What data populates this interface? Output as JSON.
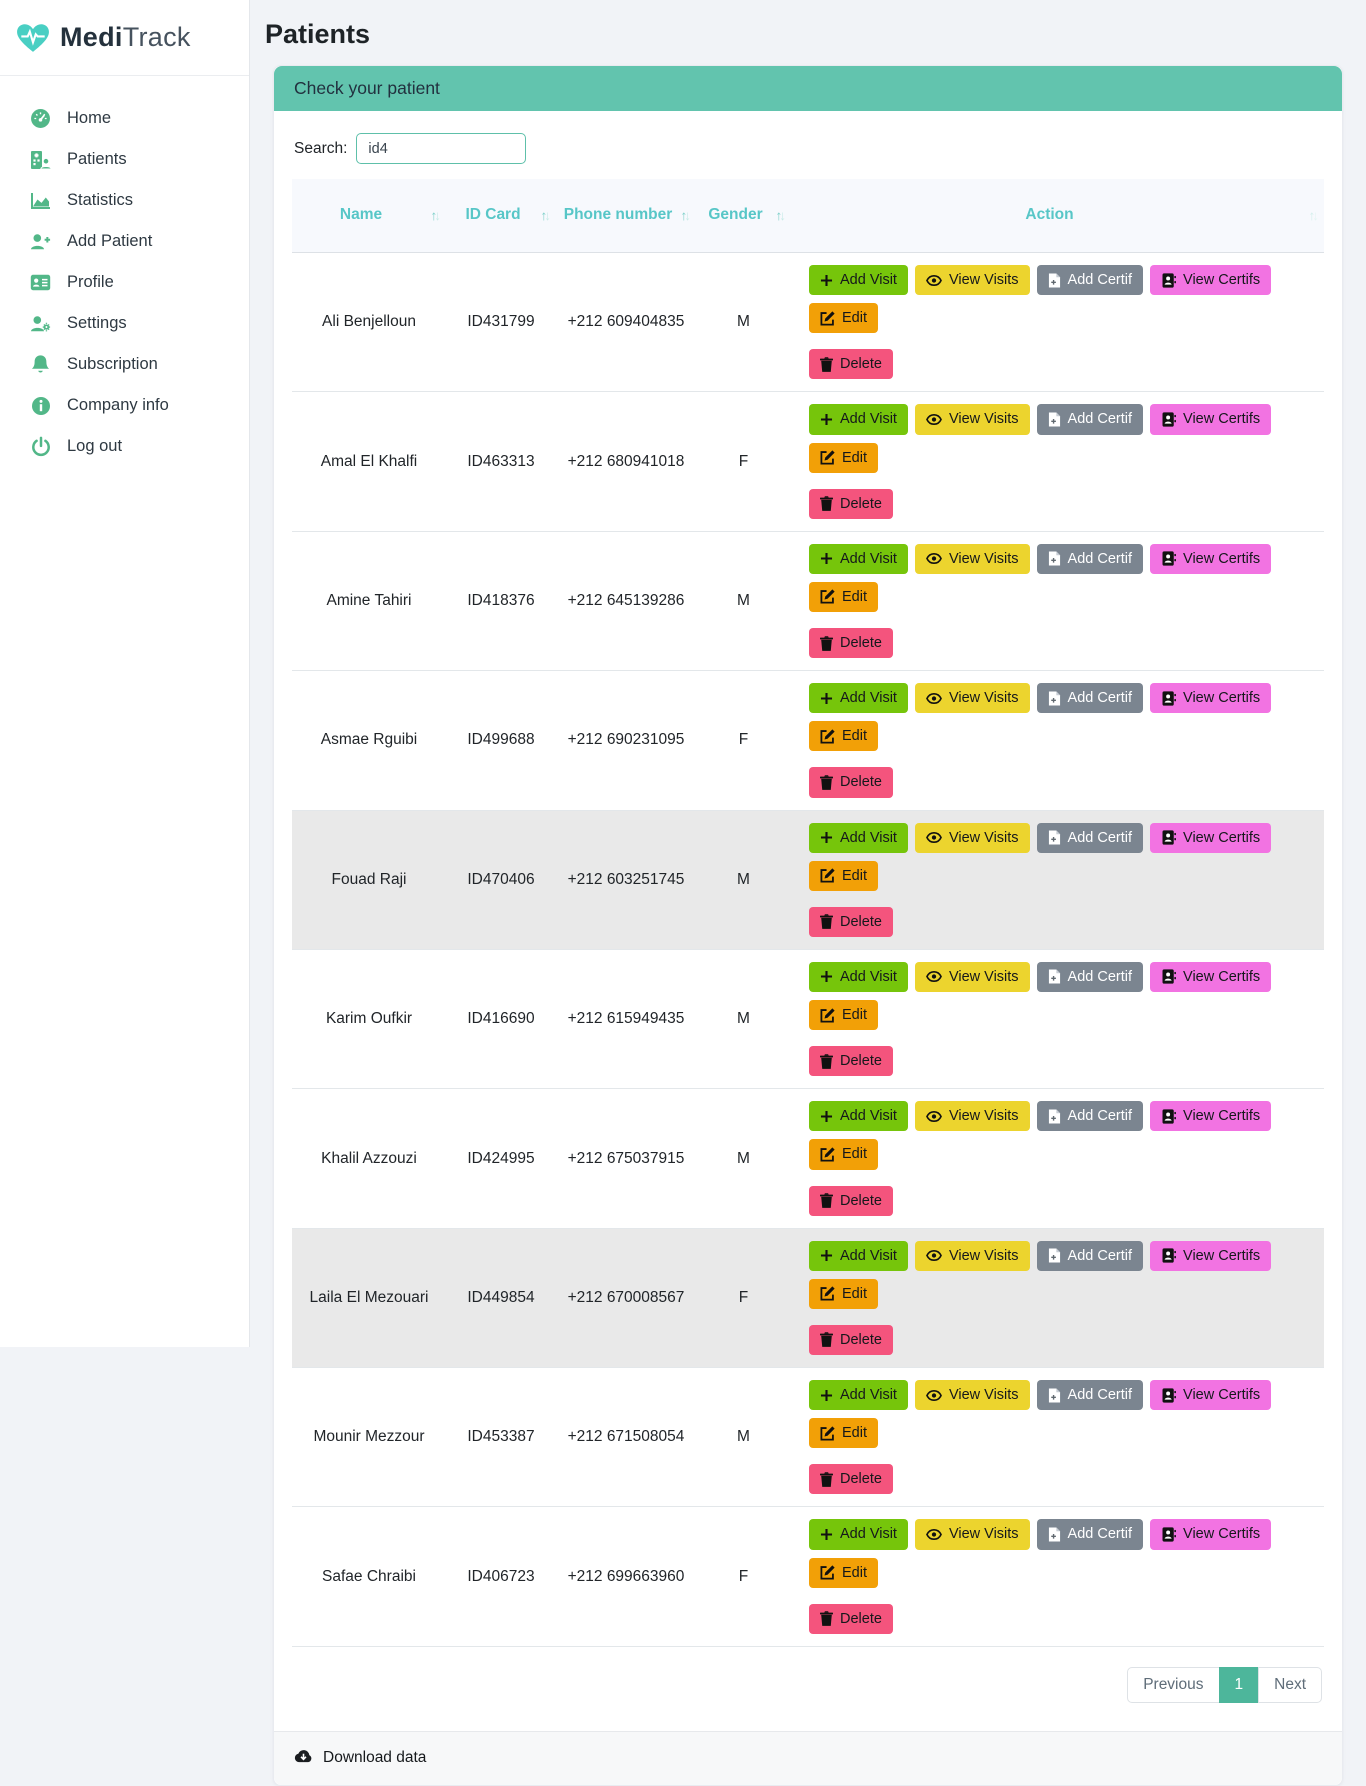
{
  "app": {
    "brand_bold": "Medi",
    "brand_light": "Track",
    "logo_icon": "heart-pulse-icon"
  },
  "sidebar": {
    "items": [
      {
        "label": "Home",
        "icon": "gauge-icon"
      },
      {
        "label": "Patients",
        "icon": "hospital-user-icon"
      },
      {
        "label": "Statistics",
        "icon": "chart-area-icon"
      },
      {
        "label": "Add Patient",
        "icon": "user-plus-icon"
      },
      {
        "label": "Profile",
        "icon": "id-card-icon"
      },
      {
        "label": "Settings",
        "icon": "user-gear-icon"
      },
      {
        "label": "Subscription",
        "icon": "bell-icon"
      },
      {
        "label": "Company info",
        "icon": "info-circle-icon"
      },
      {
        "label": "Log out",
        "icon": "power-off-icon"
      }
    ]
  },
  "page": {
    "title": "Patients"
  },
  "card": {
    "header_title": "Check your patient",
    "footer_link": "Download data",
    "footer_icon": "cloud-download-icon"
  },
  "search": {
    "label": "Search:",
    "value": "id4"
  },
  "table": {
    "sort_up": "↑",
    "sort_down": "↓",
    "columns": [
      {
        "label": "Name"
      },
      {
        "label": "ID Card"
      },
      {
        "label": "Phone number"
      },
      {
        "label": "Gender"
      },
      {
        "label": "Action"
      }
    ]
  },
  "action_buttons": [
    {
      "label": "Add Visit",
      "icon": "plus-icon",
      "style": "add-visit"
    },
    {
      "label": "View Visits",
      "icon": "eye-icon",
      "style": "view-visits"
    },
    {
      "label": "Add Certif",
      "icon": "file-plus-icon",
      "style": "add-certif"
    },
    {
      "label": "View Certifs",
      "icon": "address-book-icon",
      "style": "view-certifs"
    },
    {
      "label": "Edit",
      "icon": "pen-square-icon",
      "style": "edit"
    },
    {
      "label": "Delete",
      "icon": "trash-icon",
      "style": "delete"
    }
  ],
  "patients": [
    {
      "name": "Ali Benjelloun",
      "id_card": "ID431799",
      "phone": "+212 609404835",
      "gender": "M",
      "highlighted": false
    },
    {
      "name": "Amal El Khalfi",
      "id_card": "ID463313",
      "phone": "+212 680941018",
      "gender": "F",
      "highlighted": false
    },
    {
      "name": "Amine Tahiri",
      "id_card": "ID418376",
      "phone": "+212 645139286",
      "gender": "M",
      "highlighted": false
    },
    {
      "name": "Asmae Rguibi",
      "id_card": "ID499688",
      "phone": "+212 690231095",
      "gender": "F",
      "highlighted": false
    },
    {
      "name": "Fouad Raji",
      "id_card": "ID470406",
      "phone": "+212 603251745",
      "gender": "M",
      "highlighted": true
    },
    {
      "name": "Karim Oufkir",
      "id_card": "ID416690",
      "phone": "+212 615949435",
      "gender": "M",
      "highlighted": false
    },
    {
      "name": "Khalil Azzouzi",
      "id_card": "ID424995",
      "phone": "+212 675037915",
      "gender": "M",
      "highlighted": false
    },
    {
      "name": "Laila El Mezouari",
      "id_card": "ID449854",
      "phone": "+212 670008567",
      "gender": "F",
      "highlighted": true
    },
    {
      "name": "Mounir Mezzour",
      "id_card": "ID453387",
      "phone": "+212 671508054",
      "gender": "M",
      "highlighted": false
    },
    {
      "name": "Safae Chraibi",
      "id_card": "ID406723",
      "phone": "+212 699663960",
      "gender": "F",
      "highlighted": false
    }
  ],
  "pagination": {
    "previous": "Previous",
    "page": "1",
    "next": "Next"
  },
  "colors": {
    "card_header_teal": "#62c4ae",
    "table_header_teal": "#57c6c7",
    "sidebar_icon_green": "#52b788",
    "logo_teal": "#49cfc3",
    "pagination_active": "#4db69b",
    "row_highlight": "#e9e9e9",
    "btn_add_visit": "#76c50b",
    "btn_view_visits": "#ecd42e",
    "btn_add_certif": "#7b8590",
    "btn_view_certifs": "#f273e2",
    "btn_edit": "#f2a007",
    "btn_delete": "#f4547d"
  }
}
